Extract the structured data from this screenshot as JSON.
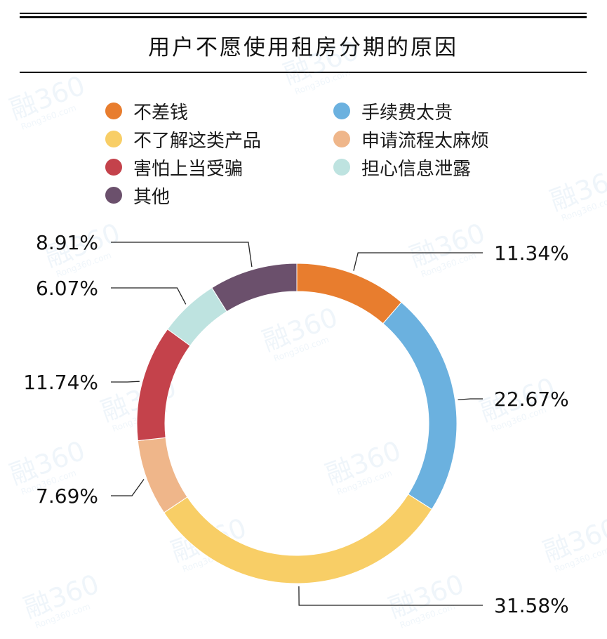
{
  "chart_data": {
    "type": "pie",
    "variant": "donut",
    "title": "用户不愿使用租房分期的原因",
    "series": [
      {
        "name": "不差钱",
        "value": 11.34,
        "label": "11.34%",
        "color": "#E87D2E"
      },
      {
        "name": "手续费太贵",
        "value": 22.67,
        "label": "22.67%",
        "color": "#6BB1DF"
      },
      {
        "name": "不了解这类产品",
        "value": 31.58,
        "label": "31.58%",
        "color": "#F8CE66"
      },
      {
        "name": "申请流程太麻烦",
        "value": 7.69,
        "label": "7.69%",
        "color": "#EFB68A"
      },
      {
        "name": "害怕上当受骗",
        "value": 11.74,
        "label": "11.74%",
        "color": "#C4424B"
      },
      {
        "name": "担心信息泄露",
        "value": 6.07,
        "label": "6.07%",
        "color": "#BEE3E0"
      },
      {
        "name": "其他",
        "value": 8.91,
        "label": "8.91%",
        "color": "#6B506C"
      }
    ],
    "legend": {
      "placement": "top",
      "order": [
        "不差钱",
        "手续费太贵",
        "不了解这类产品",
        "申请流程太麻烦",
        "害怕上当受骗",
        "担心信息泄露",
        "其他"
      ]
    }
  },
  "watermark": {
    "logo": "融360",
    "url": "Rong360.com"
  }
}
